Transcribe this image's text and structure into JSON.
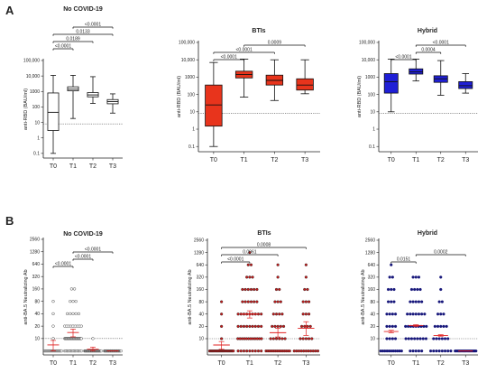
{
  "figure": {
    "panel_a_letter": "A",
    "panel_b_letter": "B"
  },
  "chart_data": [
    {
      "type": "box",
      "panel": "A",
      "title": "No COVID-19",
      "ylabel": "anti-RBD (BAU/ml)",
      "yscale": "log",
      "ylim": [
        0.05,
        100000
      ],
      "yticks": [
        "0.1",
        "1",
        "10",
        "100",
        "1000",
        "10,000",
        "100,000"
      ],
      "categories": [
        "T0",
        "T1",
        "T2",
        "T3"
      ],
      "threshold": 8,
      "fill_color": "#ffffff",
      "boxes": [
        {
          "min": 0.1,
          "q1": 3,
          "median": 45,
          "q3": 800,
          "max": 11000
        },
        {
          "min": 18,
          "q1": 1100,
          "median": 1400,
          "q3": 2000,
          "max": 11000
        },
        {
          "min": 170,
          "q1": 450,
          "median": 600,
          "q3": 850,
          "max": 9000
        },
        {
          "min": 40,
          "q1": 160,
          "median": 220,
          "q3": 300,
          "max": 700
        }
      ],
      "comparisons": [
        {
          "from": "T0",
          "to": "T1",
          "label": "<0.0001"
        },
        {
          "from": "T0",
          "to": "T2",
          "label": "0.0189"
        },
        {
          "from": "T0",
          "to": "T3",
          "label": "0.0133"
        },
        {
          "from": "T1",
          "to": "T3",
          "label": "<0.0001"
        }
      ]
    },
    {
      "type": "box",
      "panel": "A",
      "title": "BTIs",
      "ylabel": "anti-RBD (BAU/ml)",
      "yscale": "log",
      "ylim": [
        0.05,
        100000
      ],
      "yticks": [
        "0.1",
        "1",
        "10",
        "100",
        "1000",
        "10,000",
        "100,000"
      ],
      "categories": [
        "T0",
        "T1",
        "T2",
        "T3"
      ],
      "threshold": 8,
      "fill_color": "#e8341c",
      "boxes": [
        {
          "min": 0.1,
          "q1": 1.5,
          "median": 25,
          "q3": 350,
          "max": 7000
        },
        {
          "min": 70,
          "q1": 900,
          "median": 1400,
          "q3": 2200,
          "max": 11000
        },
        {
          "min": 45,
          "q1": 350,
          "median": 650,
          "q3": 1300,
          "max": 10000
        },
        {
          "min": 110,
          "q1": 180,
          "median": 350,
          "q3": 800,
          "max": 10000
        }
      ],
      "comparisons": [
        {
          "from": "T0",
          "to": "T1",
          "label": "<0.0001"
        },
        {
          "from": "T0",
          "to": "T2",
          "label": "<0.0001"
        },
        {
          "from": "T1",
          "to": "T3",
          "label": "0.0009"
        }
      ]
    },
    {
      "type": "box",
      "panel": "A",
      "title": "Hybrid",
      "ylabel": "anti-RBD (BAU/ml)",
      "yscale": "log",
      "ylim": [
        0.05,
        100000
      ],
      "yticks": [
        "0.1",
        "1",
        "10",
        "100",
        "1000",
        "10,000",
        "100,000"
      ],
      "categories": [
        "T0",
        "T1",
        "T2",
        "T3"
      ],
      "threshold": 8,
      "fill_color": "#1f1fd6",
      "boxes": [
        {
          "min": 10,
          "q1": 120,
          "median": 550,
          "q3": 1600,
          "max": 11000
        },
        {
          "min": 600,
          "q1": 1500,
          "median": 2000,
          "q3": 3000,
          "max": 11000
        },
        {
          "min": 90,
          "q1": 500,
          "median": 800,
          "q3": 1200,
          "max": 9000
        },
        {
          "min": 120,
          "q1": 220,
          "median": 320,
          "q3": 550,
          "max": 1600
        }
      ],
      "comparisons": [
        {
          "from": "T0",
          "to": "T1",
          "label": "<0.0001"
        },
        {
          "from": "T1",
          "to": "T2",
          "label": "0.0004"
        },
        {
          "from": "T1",
          "to": "T3",
          "label": "<0.0001"
        }
      ]
    },
    {
      "type": "scatter",
      "panel": "B",
      "title": "No COVID-19",
      "ylabel": "anti-BA.5 Neutralizing Ab",
      "yscale": "log2",
      "ylim": [
        4,
        2560
      ],
      "yticks": [
        "10",
        "20",
        "40",
        "80",
        "160",
        "320",
        "640",
        "1280",
        "2560"
      ],
      "categories": [
        "T0",
        "T1",
        "T2",
        "T3"
      ],
      "threshold": 10,
      "dot_color": "#ffffff",
      "dot_stroke": "#222222",
      "groups": [
        {
          "values": [
            5,
            5,
            5,
            5,
            5,
            5,
            5,
            5,
            5,
            5,
            5,
            5,
            5,
            5,
            5,
            5,
            5,
            5,
            5,
            5,
            10,
            20,
            40,
            80
          ],
          "mean": 7,
          "sem": [
            5,
            9
          ]
        },
        {
          "values": [
            5,
            5,
            5,
            5,
            5,
            5,
            5,
            5,
            5,
            5,
            5,
            5,
            5,
            5,
            5,
            10,
            10,
            10,
            10,
            10,
            10,
            10,
            10,
            10,
            10,
            10,
            10,
            10,
            10,
            10,
            10,
            10,
            10,
            10,
            10,
            10,
            10,
            10,
            10,
            10,
            10,
            20,
            20,
            20,
            20,
            20,
            20,
            20,
            20,
            20,
            40,
            40,
            40,
            40,
            40,
            80,
            80,
            80,
            160,
            160
          ],
          "mean": 14,
          "sem": [
            11,
            17
          ]
        },
        {
          "values": [
            5,
            5,
            5,
            5,
            5,
            5,
            5,
            5,
            5,
            5,
            5,
            5,
            5,
            5,
            5,
            5,
            5,
            5,
            5,
            5,
            5,
            5,
            5,
            5,
            5,
            5,
            5,
            5,
            5,
            5,
            10
          ],
          "mean": 5.5,
          "sem": [
            5,
            6.2
          ]
        },
        {
          "values": [
            5,
            5,
            5,
            5,
            5,
            5,
            5,
            5,
            5,
            5,
            5,
            5,
            5,
            5,
            5,
            5,
            5,
            5,
            5,
            5,
            5,
            5,
            5,
            5,
            5,
            5,
            5,
            5,
            5,
            5
          ],
          "mean": 5,
          "sem": [
            5,
            5
          ]
        }
      ],
      "comparisons": [
        {
          "from": "T0",
          "to": "T1",
          "label": "<0.0001"
        },
        {
          "from": "T1",
          "to": "T2",
          "label": "<0.0001"
        },
        {
          "from": "T1",
          "to": "T3",
          "label": "<0.0001"
        }
      ]
    },
    {
      "type": "scatter",
      "panel": "B",
      "title": "BTIs",
      "ylabel": "anti-BA.5 Neutralizing Ab",
      "yscale": "log2",
      "ylim": [
        4,
        2560
      ],
      "yticks": [
        "10",
        "20",
        "40",
        "80",
        "160",
        "320",
        "640",
        "1280",
        "2560"
      ],
      "categories": [
        "T0",
        "T1",
        "T2",
        "T3"
      ],
      "threshold": 10,
      "dot_color": "#c41a1a",
      "dot_stroke": "#222222",
      "groups": [
        {
          "values": [
            5,
            5,
            5,
            5,
            5,
            5,
            5,
            5,
            5,
            5,
            5,
            5,
            5,
            5,
            5,
            5,
            5,
            5,
            5,
            5,
            5,
            5,
            5,
            5,
            5,
            10,
            20,
            40,
            80
          ],
          "mean": 7,
          "sem": [
            5.5,
            8.5
          ]
        },
        {
          "values": [
            5,
            5,
            5,
            5,
            5,
            5,
            5,
            5,
            5,
            10,
            10,
            10,
            10,
            10,
            10,
            10,
            10,
            10,
            10,
            10,
            10,
            20,
            20,
            20,
            20,
            20,
            20,
            20,
            20,
            20,
            40,
            40,
            40,
            40,
            40,
            40,
            40,
            40,
            40,
            80,
            80,
            80,
            80,
            80,
            80,
            160,
            160,
            160,
            160,
            160,
            160,
            320,
            320,
            320,
            640,
            640,
            1280
          ],
          "mean": 40,
          "sem": [
            32,
            48
          ]
        },
        {
          "values": [
            5,
            5,
            5,
            5,
            5,
            5,
            5,
            5,
            5,
            5,
            5,
            5,
            5,
            5,
            10,
            10,
            10,
            10,
            10,
            10,
            20,
            20,
            20,
            20,
            20,
            40,
            40,
            40,
            40,
            80,
            80,
            80,
            160,
            160,
            320,
            640
          ],
          "mean": 14,
          "sem": [
            11,
            18
          ]
        },
        {
          "values": [
            5,
            5,
            5,
            5,
            5,
            5,
            5,
            5,
            5,
            5,
            5,
            10,
            10,
            10,
            10,
            10,
            20,
            20,
            20,
            20,
            40,
            40,
            40,
            80,
            80,
            80,
            160,
            160,
            320,
            640
          ],
          "mean": 18,
          "sem": [
            12,
            26
          ]
        }
      ],
      "comparisons": [
        {
          "from": "T0",
          "to": "T1",
          "label": "<0.0001"
        },
        {
          "from": "T0",
          "to": "T2",
          "label": "0.0061"
        },
        {
          "from": "T0",
          "to": "T3",
          "label": "0.0008"
        }
      ]
    },
    {
      "type": "scatter",
      "panel": "B",
      "title": "Hybrid",
      "ylabel": "anti-BA.5 Neutralizing Ab",
      "yscale": "log2",
      "ylim": [
        4,
        2560
      ],
      "yticks": [
        "10",
        "20",
        "40",
        "80",
        "160",
        "320",
        "640",
        "1280",
        "2560"
      ],
      "categories": [
        "T0",
        "T1",
        "T2",
        "T3"
      ],
      "threshold": 10,
      "dot_color": "#16167a",
      "dot_stroke": "#16167a",
      "groups": [
        {
          "values": [
            5,
            5,
            5,
            5,
            5,
            5,
            5,
            5,
            5,
            5,
            5,
            10,
            10,
            10,
            10,
            20,
            20,
            20,
            20,
            40,
            40,
            40,
            40,
            80,
            80,
            80,
            160,
            160,
            160,
            320,
            320,
            640
          ],
          "mean": 15,
          "sem": [
            14,
            16
          ]
        },
        {
          "values": [
            5,
            5,
            5,
            5,
            5,
            10,
            10,
            10,
            10,
            10,
            10,
            10,
            10,
            20,
            20,
            20,
            20,
            20,
            20,
            20,
            20,
            20,
            40,
            40,
            40,
            40,
            40,
            40,
            40,
            80,
            80,
            80,
            80,
            80,
            160,
            160,
            160,
            160,
            320,
            320,
            320
          ],
          "mean": 21,
          "sem": [
            20,
            22
          ]
        },
        {
          "values": [
            5,
            5,
            5,
            5,
            5,
            5,
            5,
            5,
            10,
            10,
            10,
            10,
            10,
            10,
            20,
            20,
            20,
            20,
            20,
            40,
            40,
            40,
            80,
            80,
            160,
            320
          ],
          "mean": 12,
          "sem": [
            11.5,
            12.5
          ]
        },
        {
          "values": [
            5,
            5,
            5,
            5,
            5,
            5,
            5,
            5,
            5,
            5,
            5,
            5,
            5,
            5,
            5,
            5,
            5,
            5,
            5,
            5
          ],
          "mean": 5,
          "sem": [
            5,
            5
          ]
        }
      ],
      "comparisons": [
        {
          "from": "T0",
          "to": "T1",
          "label": "0.0151"
        },
        {
          "from": "T1",
          "to": "T3",
          "label": "0.0002"
        }
      ]
    }
  ]
}
